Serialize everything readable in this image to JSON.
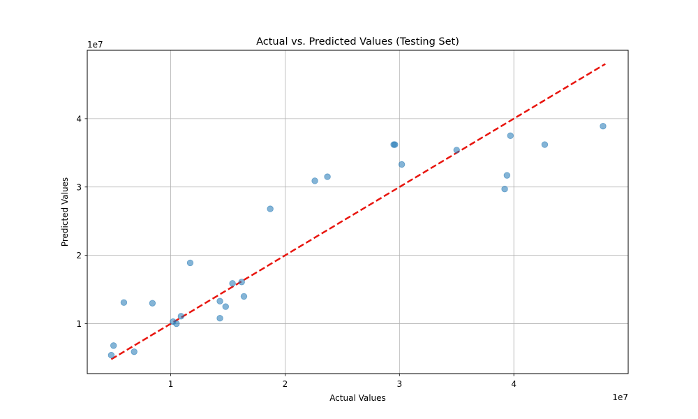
{
  "chart_data": {
    "type": "scatter",
    "title": "Actual vs. Predicted Values (Testing Set)",
    "xlabel": "Actual Values",
    "ylabel": "Predicted Values",
    "x_offset_label": "1e7",
    "y_offset_label": "1e7",
    "xlim": [
      0.27,
      5.0
    ],
    "ylim": [
      0.27,
      5.0
    ],
    "xticks": [
      1,
      2,
      3,
      4
    ],
    "yticks": [
      1,
      2,
      3,
      4
    ],
    "grid": true,
    "point_color": "#1f77b4",
    "line_color": "#e8150e",
    "reference_line": {
      "style": "dashed",
      "x": [
        0.48,
        4.8
      ],
      "y": [
        0.48,
        4.8
      ]
    },
    "points": [
      {
        "x": 0.48,
        "y": 0.54
      },
      {
        "x": 0.5,
        "y": 0.68
      },
      {
        "x": 0.59,
        "y": 1.31
      },
      {
        "x": 0.68,
        "y": 0.59
      },
      {
        "x": 0.84,
        "y": 1.3
      },
      {
        "x": 1.02,
        "y": 1.03
      },
      {
        "x": 1.05,
        "y": 1.0
      },
      {
        "x": 1.09,
        "y": 1.11
      },
      {
        "x": 1.17,
        "y": 1.89
      },
      {
        "x": 1.43,
        "y": 1.33
      },
      {
        "x": 1.43,
        "y": 1.08
      },
      {
        "x": 1.48,
        "y": 1.25
      },
      {
        "x": 1.54,
        "y": 1.59
      },
      {
        "x": 1.62,
        "y": 1.61
      },
      {
        "x": 1.64,
        "y": 1.4
      },
      {
        "x": 1.87,
        "y": 2.68
      },
      {
        "x": 2.26,
        "y": 3.09
      },
      {
        "x": 2.37,
        "y": 3.15
      },
      {
        "x": 2.95,
        "y": 3.62
      },
      {
        "x": 2.96,
        "y": 3.62
      },
      {
        "x": 3.02,
        "y": 3.33
      },
      {
        "x": 3.5,
        "y": 3.54
      },
      {
        "x": 3.92,
        "y": 2.97
      },
      {
        "x": 3.94,
        "y": 3.17
      },
      {
        "x": 3.97,
        "y": 3.75
      },
      {
        "x": 4.27,
        "y": 3.62
      },
      {
        "x": 4.78,
        "y": 3.89
      }
    ]
  }
}
